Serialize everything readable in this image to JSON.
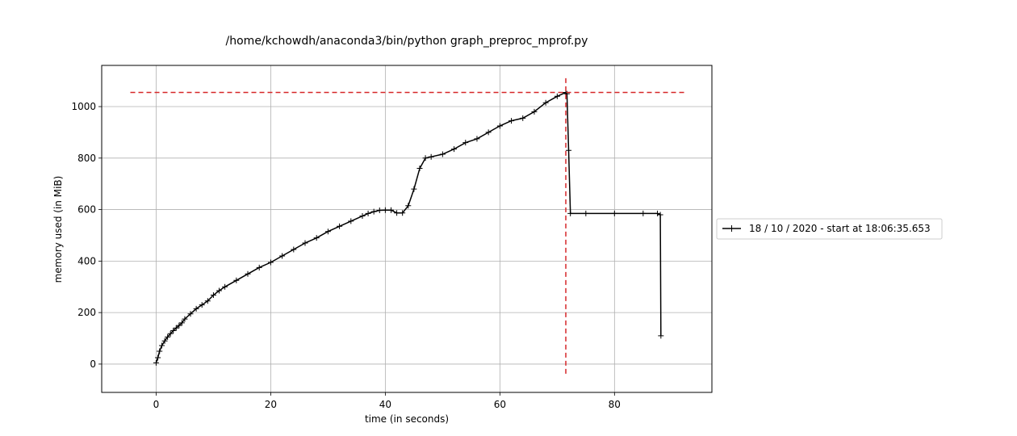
{
  "chart_data": {
    "type": "line",
    "title": "/home/kchowdh/anaconda3/bin/python graph_preproc_mprof.py",
    "xlabel": "time (in seconds)",
    "ylabel": "memory used (in MiB)",
    "xlim": [
      -9.5,
      97
    ],
    "ylim": [
      -110,
      1160
    ],
    "xticks": [
      0,
      20,
      40,
      60,
      80
    ],
    "yticks": [
      0,
      200,
      400,
      600,
      800,
      1000
    ],
    "grid": true,
    "legend_position": "right",
    "series": [
      {
        "name": "18 / 10 / 2020 - start at 18:06:35.653",
        "color": "#000000",
        "marker": "+",
        "x": [
          0,
          0.3,
          0.6,
          1,
          1.5,
          2,
          2.5,
          3,
          3.5,
          4,
          4.5,
          5,
          6,
          7,
          8,
          9,
          10,
          11,
          12,
          14,
          16,
          18,
          20,
          22,
          24,
          26,
          28,
          30,
          32,
          34,
          36,
          37,
          38,
          39,
          40,
          41,
          42,
          43,
          44,
          45,
          46,
          47,
          48,
          50,
          52,
          54,
          56,
          58,
          60,
          62,
          64,
          66,
          68,
          70,
          71.5,
          71.7,
          72,
          72.3,
          75,
          80,
          85,
          87.5,
          88,
          88.1
        ],
        "y": [
          5,
          25,
          50,
          72,
          90,
          105,
          118,
          130,
          140,
          150,
          160,
          175,
          195,
          215,
          230,
          245,
          268,
          285,
          300,
          325,
          350,
          375,
          395,
          420,
          445,
          470,
          490,
          515,
          535,
          555,
          575,
          585,
          592,
          597,
          598,
          598,
          587,
          587,
          615,
          680,
          760,
          800,
          805,
          815,
          835,
          860,
          875,
          900,
          925,
          945,
          955,
          980,
          1015,
          1040,
          1055,
          1050,
          830,
          585,
          585,
          585,
          585,
          585,
          580,
          110
        ]
      },
      {
        "name": "",
        "color": "#d62728",
        "style": "dashed",
        "x": [
          -4.5,
          92.5
        ],
        "y": [
          1055,
          1055
        ]
      },
      {
        "name": "",
        "color": "#d62728",
        "style": "dashed",
        "x": [
          71.5,
          71.5
        ],
        "y": [
          1110,
          -50
        ]
      }
    ]
  }
}
